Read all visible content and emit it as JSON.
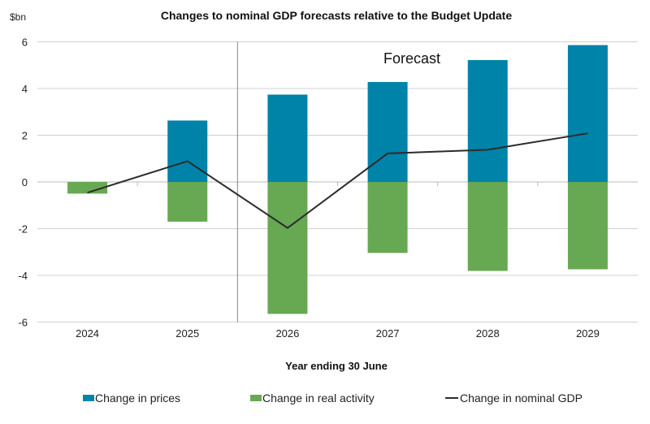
{
  "chart_data": {
    "type": "bar",
    "stacked": true,
    "title": "Changes to nominal GDP forecasts relative to the Budget Update",
    "ylabel": "$bn",
    "xlabel": "Year ending 30 June",
    "categories": [
      "2024",
      "2025",
      "2026",
      "2027",
      "2028",
      "2029"
    ],
    "ylim": [
      -6,
      6
    ],
    "yticks": [
      6,
      4,
      2,
      0,
      -2,
      -4,
      -6
    ],
    "grid": true,
    "legend_position": "bottom",
    "annotation": "Forecast",
    "forecast_divider_between": [
      "2025",
      "2026"
    ],
    "series": [
      {
        "name": "Change in prices",
        "type": "bar",
        "color": "#0083a9",
        "values": [
          0,
          2.63,
          3.74,
          4.28,
          5.22,
          5.86
        ]
      },
      {
        "name": "Change in real activity",
        "type": "bar",
        "color": "#67a853",
        "values": [
          -0.5,
          -1.7,
          -5.65,
          -3.04,
          -3.81,
          -3.74
        ]
      },
      {
        "name": "Change in nominal GDP",
        "type": "line",
        "color": "#2b2b2b",
        "values": [
          -0.46,
          0.89,
          -1.97,
          1.22,
          1.38,
          2.08
        ]
      }
    ]
  }
}
